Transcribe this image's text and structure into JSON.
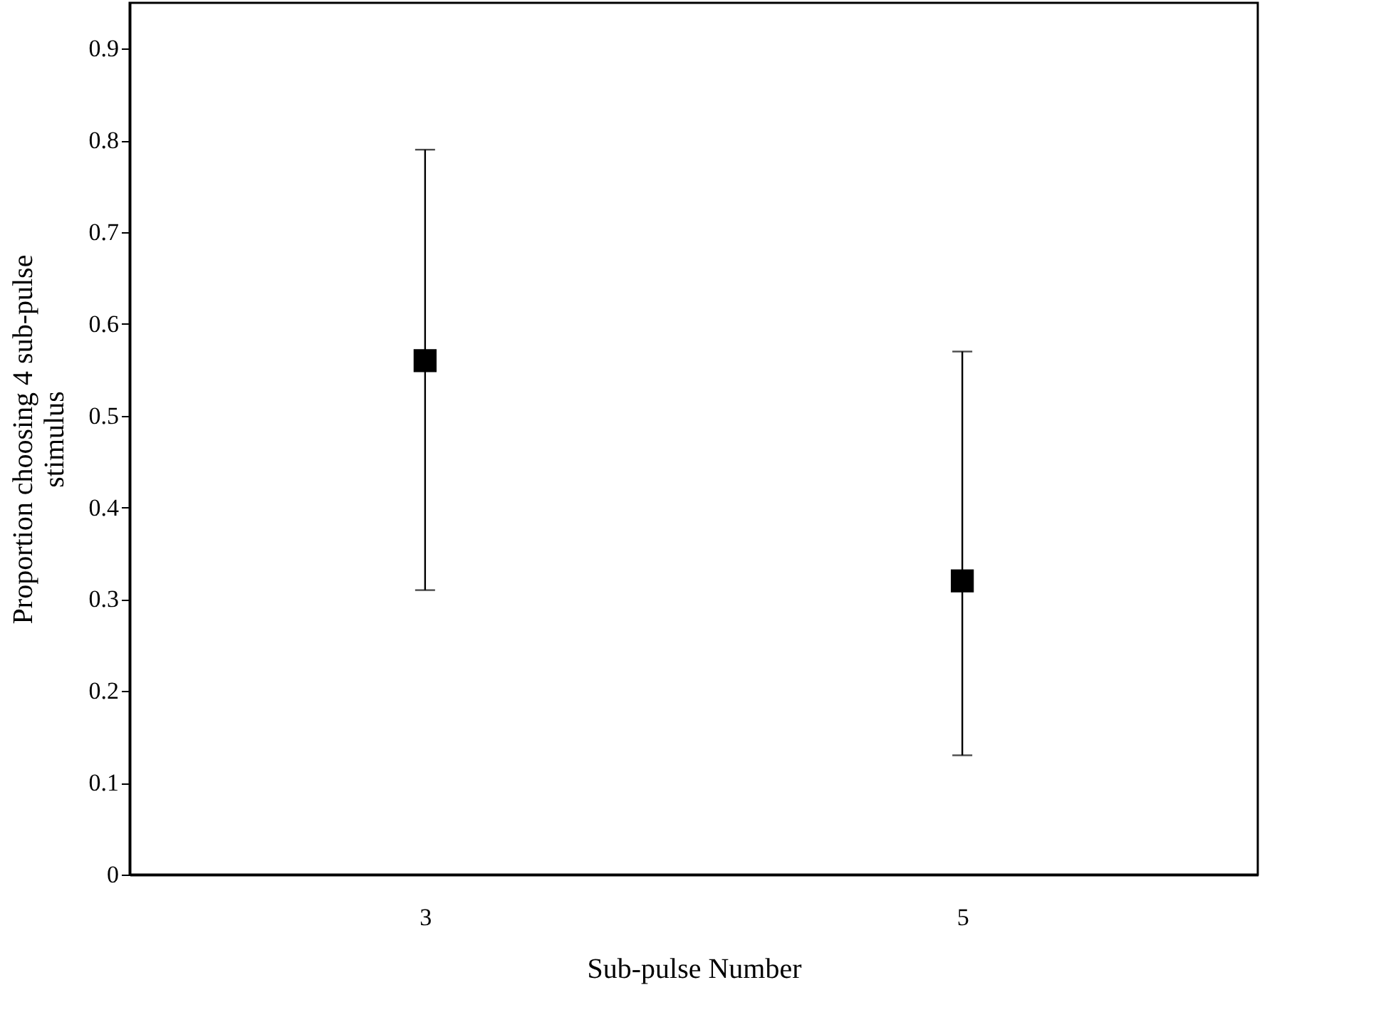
{
  "chart_data": {
    "type": "scatter",
    "xlabel": "Sub-pulse Number",
    "ylabel": "Proportion choosing 4 sub-pulse stimulus",
    "categories": [
      "3",
      "5"
    ],
    "series": [
      {
        "color": "#000000",
        "values": [
          0.56,
          0.32
        ],
        "errors": [
          [
            0.31,
            0.79
          ],
          [
            0.13,
            0.57
          ]
        ]
      }
    ],
    "ylim": [
      0,
      0.95
    ],
    "yticks": [
      0,
      0.1,
      0.2,
      0.3,
      0.4,
      0.5,
      0.6,
      0.7,
      0.8,
      0.9
    ],
    "marker": "square",
    "grid": false
  }
}
